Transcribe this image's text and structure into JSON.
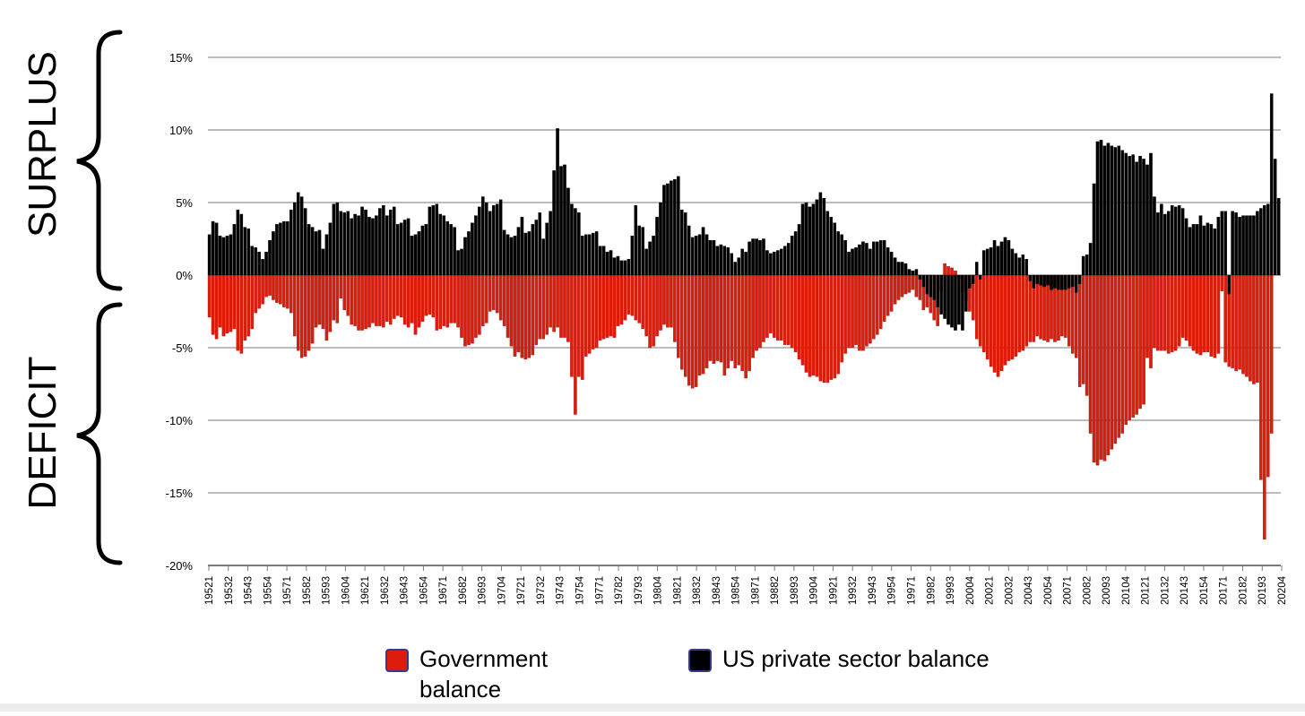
{
  "labels": {
    "surplus": "SURPLUS",
    "deficit": "DEFICIT"
  },
  "legend": {
    "government": "Government balance",
    "private": "US private sector balance"
  },
  "colors": {
    "government": "#dd1c0c",
    "private": "#000000",
    "grid": "#7a7a7a",
    "legend_border": "#3a3a8a"
  },
  "chart_data": {
    "type": "bar",
    "title": "",
    "xlabel": "",
    "ylabel": "",
    "ylim": [
      -20,
      15
    ],
    "y_ticks": [
      "15%",
      "10%",
      "5%",
      "0%",
      "-5%",
      "-10%",
      "-15%",
      "-20%"
    ],
    "y_tick_values": [
      15,
      10,
      5,
      0,
      -5,
      -10,
      -15,
      -20
    ],
    "x_tick_labels": [
      "19521",
      "19532",
      "19543",
      "19554",
      "19571",
      "19582",
      "19593",
      "19604",
      "19621",
      "19632",
      "19643",
      "19654",
      "19671",
      "19682",
      "19693",
      "19704",
      "19721",
      "19732",
      "19743",
      "19754",
      "19771",
      "19782",
      "19793",
      "19804",
      "19821",
      "19832",
      "19843",
      "19854",
      "19871",
      "19882",
      "19893",
      "19904",
      "19921",
      "19932",
      "19943",
      "19954",
      "19971",
      "19982",
      "19993",
      "20004",
      "20021",
      "20032",
      "20043",
      "20054",
      "20071",
      "20082",
      "20093",
      "20104",
      "20121",
      "20132",
      "20143",
      "20154",
      "20171",
      "20182",
      "20193",
      "20204"
    ],
    "series": [
      {
        "name": "US private sector balance",
        "color": "#000000",
        "values": [
          2.8,
          3.7,
          3.6,
          2.7,
          2.6,
          2.7,
          2.8,
          3.5,
          4.5,
          4.2,
          3.3,
          3.2,
          2.0,
          1.9,
          1.6,
          1.1,
          1.6,
          2.4,
          3.0,
          3.5,
          3.6,
          3.7,
          3.7,
          4.5,
          5.0,
          5.7,
          5.4,
          4.6,
          3.5,
          3.3,
          3.0,
          3.1,
          1.8,
          2.8,
          3.6,
          4.9,
          5.0,
          4.4,
          4.3,
          4.4,
          3.9,
          4.2,
          4.1,
          4.7,
          4.5,
          4.0,
          3.9,
          4.1,
          4.6,
          4.8,
          4.1,
          4.5,
          4.7,
          3.5,
          3.6,
          3.8,
          3.9,
          2.7,
          2.8,
          3.0,
          3.4,
          3.5,
          4.7,
          4.8,
          4.9,
          4.2,
          4.1,
          3.7,
          3.5,
          3.3,
          1.7,
          1.8,
          2.6,
          3.0,
          3.6,
          4.1,
          4.7,
          5.4,
          5.0,
          4.4,
          4.8,
          4.9,
          5.2,
          3.1,
          2.8,
          2.6,
          2.7,
          3.3,
          4.0,
          2.9,
          3.0,
          3.5,
          3.8,
          4.3,
          2.5,
          3.6,
          4.4,
          7.2,
          10.1,
          7.5,
          7.6,
          6.0,
          4.9,
          4.6,
          4.3,
          2.7,
          2.8,
          2.8,
          2.9,
          3.0,
          2.0,
          2.0,
          1.6,
          1.7,
          1.2,
          1.3,
          1.0,
          1.0,
          1.1,
          2.7,
          4.8,
          3.4,
          3.3,
          1.8,
          2.3,
          2.7,
          4.0,
          5.0,
          6.2,
          6.3,
          6.5,
          6.6,
          6.8,
          4.5,
          4.3,
          3.4,
          2.6,
          2.7,
          2.8,
          3.3,
          2.8,
          2.4,
          2.4,
          2.0,
          2.1,
          2.0,
          1.9,
          1.5,
          0.9,
          1.2,
          1.8,
          1.6,
          2.3,
          2.5,
          2.5,
          2.4,
          2.5,
          1.7,
          1.5,
          1.6,
          1.7,
          1.8,
          2.0,
          2.2,
          2.7,
          3.0,
          3.5,
          4.9,
          5.0,
          4.7,
          4.9,
          5.2,
          5.7,
          5.3,
          4.4,
          4.0,
          3.6,
          3.0,
          2.8,
          2.4,
          1.6,
          1.8,
          1.9,
          2.1,
          2.3,
          2.2,
          1.8,
          2.3,
          2.3,
          2.4,
          2.4,
          1.9,
          1.6,
          1.2,
          0.9,
          0.9,
          0.8,
          0.4,
          0.3,
          0.4,
          -0.3,
          -0.8,
          -1.3,
          -1.5,
          -1.7,
          -2.2,
          -2.7,
          -3.0,
          -3.4,
          -3.6,
          -3.8,
          -3.4,
          -3.8,
          -2.5,
          -0.9,
          -0.6,
          0.9,
          -0.3,
          1.7,
          1.8,
          1.9,
          2.4,
          2.0,
          2.3,
          2.6,
          2.4,
          1.8,
          1.5,
          1.2,
          1.4,
          1.1,
          -0.4,
          -0.9,
          -0.6,
          -0.7,
          -0.8,
          -0.7,
          -1.0,
          -0.9,
          -1.0,
          -1.0,
          -1.0,
          -0.9,
          -0.8,
          -1.2,
          -0.6,
          1.3,
          1.4,
          2.2,
          6.3,
          9.2,
          9.3,
          8.9,
          9.1,
          8.9,
          8.8,
          8.9,
          8.6,
          8.4,
          8.2,
          8.3,
          7.8,
          8.2,
          8.0,
          7.6,
          8.4,
          5.4,
          4.3,
          4.9,
          4.2,
          4.4,
          4.8,
          4.7,
          4.8,
          4.6,
          3.9,
          3.3,
          3.5,
          3.5,
          4.1,
          3.4,
          3.6,
          3.5,
          3.2,
          4.0,
          4.4,
          4.4,
          -1.3,
          4.4,
          4.3,
          4.0,
          4.1,
          4.1,
          4.1,
          4.1,
          4.4,
          4.6,
          4.8,
          4.9,
          12.5,
          8.0,
          5.3
        ]
      },
      {
        "name": "Government balance",
        "color": "#dd1c0c",
        "values": [
          -2.9,
          -4.1,
          -4.4,
          -3.6,
          -4.2,
          -4.0,
          -3.9,
          -3.7,
          -5.2,
          -5.4,
          -4.5,
          -4.2,
          -3.7,
          -2.6,
          -2.3,
          -2.0,
          -1.5,
          -1.4,
          -1.7,
          -1.9,
          -2.0,
          -2.2,
          -2.3,
          -2.6,
          -4.2,
          -5.2,
          -5.7,
          -5.6,
          -5.2,
          -4.7,
          -3.6,
          -3.4,
          -3.7,
          -4.5,
          -3.9,
          -3.1,
          -3.3,
          -1.6,
          -2.4,
          -2.8,
          -3.4,
          -3.5,
          -3.8,
          -3.8,
          -3.7,
          -3.6,
          -3.3,
          -3.5,
          -3.5,
          -3.6,
          -3.2,
          -3.4,
          -3.0,
          -2.8,
          -2.9,
          -3.4,
          -3.6,
          -3.3,
          -4.1,
          -3.6,
          -3.2,
          -2.8,
          -2.7,
          -2.9,
          -3.8,
          -3.7,
          -3.5,
          -3.6,
          -3.3,
          -3.3,
          -3.6,
          -4.3,
          -4.9,
          -4.8,
          -4.7,
          -4.3,
          -4.1,
          -3.5,
          -3.3,
          -2.5,
          -2.4,
          -2.6,
          -3.1,
          -3.5,
          -4.3,
          -4.9,
          -5.6,
          -5.3,
          -5.7,
          -5.8,
          -5.7,
          -5.5,
          -4.8,
          -4.4,
          -4.4,
          -4.1,
          -3.6,
          -3.9,
          -3.6,
          -4.3,
          -4.3,
          -4.6,
          -7.0,
          -9.6,
          -7.0,
          -7.2,
          -5.6,
          -5.4,
          -5.1,
          -5.0,
          -4.5,
          -4.4,
          -4.3,
          -4.2,
          -4.3,
          -3.5,
          -3.4,
          -3.1,
          -2.7,
          -2.8,
          -3.1,
          -3.3,
          -3.7,
          -4.2,
          -5.0,
          -4.9,
          -4.2,
          -3.8,
          -3.4,
          -3.6,
          -3.6,
          -4.6,
          -5.7,
          -6.5,
          -7.0,
          -7.6,
          -7.8,
          -7.7,
          -6.9,
          -6.8,
          -6.4,
          -5.9,
          -6.1,
          -5.9,
          -6.0,
          -6.9,
          -6.4,
          -5.9,
          -6.4,
          -6.2,
          -6.6,
          -7.1,
          -6.6,
          -5.7,
          -5.2,
          -5.0,
          -4.6,
          -4.3,
          -4.0,
          -4.3,
          -4.5,
          -4.5,
          -4.8,
          -4.8,
          -5.0,
          -5.3,
          -5.8,
          -6.2,
          -6.7,
          -7.0,
          -6.9,
          -7.0,
          -7.3,
          -7.4,
          -7.4,
          -7.2,
          -7.1,
          -6.8,
          -6.0,
          -5.4,
          -5.0,
          -5.0,
          -4.8,
          -5.2,
          -5.2,
          -4.9,
          -4.7,
          -4.4,
          -4.1,
          -3.7,
          -3.2,
          -2.8,
          -2.5,
          -2.0,
          -1.7,
          -1.5,
          -1.3,
          -1.2,
          -1.0,
          -1.5,
          -1.7,
          -2.4,
          -2.2,
          -2.6,
          -3.1,
          -3.5,
          -1.1,
          0.8,
          0.6,
          0.5,
          0.3,
          -0.2,
          -1.2,
          -1.8,
          -2.5,
          -3.1,
          -4.4,
          -4.9,
          -5.3,
          -5.8,
          -6.3,
          -6.7,
          -7.0,
          -6.6,
          -6.2,
          -5.9,
          -5.8,
          -5.6,
          -5.3,
          -5.2,
          -4.9,
          -4.6,
          -4.6,
          -4.2,
          -4.4,
          -4.5,
          -4.6,
          -4.4,
          -4.6,
          -4.5,
          -4.2,
          -4.3,
          -4.9,
          -5.4,
          -5.7,
          -7.7,
          -7.5,
          -8.3,
          -10.9,
          -12.9,
          -13.1,
          -12.7,
          -12.8,
          -12.4,
          -12.0,
          -11.6,
          -11.2,
          -10.9,
          -10.3,
          -10.0,
          -9.8,
          -9.6,
          -9.2,
          -8.9,
          -5.7,
          -6.4,
          -5.0,
          -5.2,
          -5.2,
          -5.2,
          -5.4,
          -5.3,
          -5.2,
          -4.9,
          -4.3,
          -4.5,
          -4.9,
          -5.2,
          -5.4,
          -5.5,
          -5.3,
          -5.3,
          -5.6,
          -5.7,
          -5.4,
          -1.1,
          -6.0,
          -6.3,
          -6.4,
          -6.6,
          -6.5,
          -6.8,
          -7.0,
          -7.3,
          -7.5,
          -7.4,
          -14.1,
          -18.2,
          -13.9,
          -10.9
        ]
      }
    ],
    "legend_position": "bottom-center",
    "grid": true
  }
}
